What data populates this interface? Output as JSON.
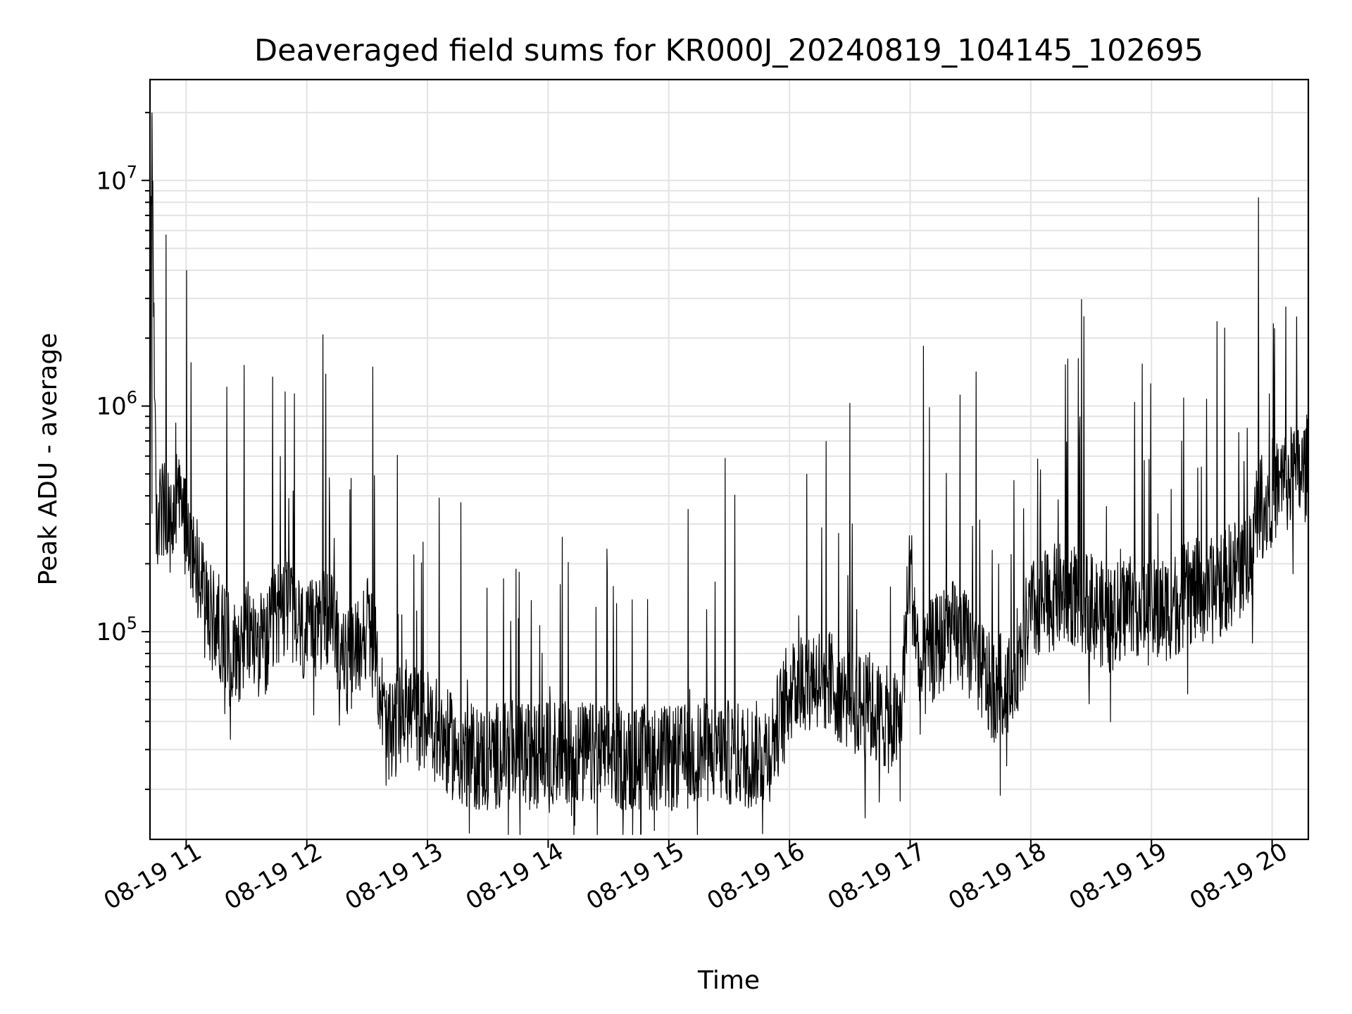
{
  "chart_data": {
    "type": "line",
    "title": "Deaveraged field sums for KR000J_20240819_104145_102695",
    "xlabel": "Time",
    "ylabel": "Peak ADU - average",
    "yscale": "log",
    "grid": true,
    "xlim": [
      "2024-08-19 10:42",
      "2024-08-19 20:18"
    ],
    "ylim": [
      12000,
      28000000
    ],
    "x_ticks": [
      {
        "value": "2024-08-19 11:00",
        "label": "08-19 11"
      },
      {
        "value": "2024-08-19 12:00",
        "label": "08-19 12"
      },
      {
        "value": "2024-08-19 13:00",
        "label": "08-19 13"
      },
      {
        "value": "2024-08-19 14:00",
        "label": "08-19 14"
      },
      {
        "value": "2024-08-19 15:00",
        "label": "08-19 15"
      },
      {
        "value": "2024-08-19 16:00",
        "label": "08-19 16"
      },
      {
        "value": "2024-08-19 17:00",
        "label": "08-19 17"
      },
      {
        "value": "2024-08-19 18:00",
        "label": "08-19 18"
      },
      {
        "value": "2024-08-19 19:00",
        "label": "08-19 19"
      },
      {
        "value": "2024-08-19 20:00",
        "label": "08-19 20"
      }
    ],
    "y_ticks": [
      {
        "value": 100000,
        "base": "10",
        "exp": "5"
      },
      {
        "value": 1000000,
        "base": "10",
        "exp": "6"
      },
      {
        "value": 10000000,
        "base": "10",
        "exp": "7"
      }
    ],
    "series": [
      {
        "color": "#000000",
        "x": [
          "2024-08-19 10:42",
          "2024-08-19 10:43",
          "2024-08-19 10:45",
          "2024-08-19 10:48",
          "2024-08-19 10:52",
          "2024-08-19 10:56",
          "2024-08-19 11:00",
          "2024-08-19 11:05",
          "2024-08-19 11:10",
          "2024-08-19 11:15",
          "2024-08-19 11:20",
          "2024-08-19 11:25",
          "2024-08-19 11:30",
          "2024-08-19 11:35",
          "2024-08-19 11:40",
          "2024-08-19 11:45",
          "2024-08-19 11:50",
          "2024-08-19 11:55",
          "2024-08-19 12:00",
          "2024-08-19 12:05",
          "2024-08-19 12:10",
          "2024-08-19 12:15",
          "2024-08-19 12:20",
          "2024-08-19 12:25",
          "2024-08-19 12:30",
          "2024-08-19 12:35",
          "2024-08-19 12:40",
          "2024-08-19 12:45",
          "2024-08-19 12:50",
          "2024-08-19 12:55",
          "2024-08-19 13:00",
          "2024-08-19 13:10",
          "2024-08-19 13:20",
          "2024-08-19 13:30",
          "2024-08-19 13:40",
          "2024-08-19 13:50",
          "2024-08-19 14:00",
          "2024-08-19 14:10",
          "2024-08-19 14:20",
          "2024-08-19 14:30",
          "2024-08-19 14:40",
          "2024-08-19 14:50",
          "2024-08-19 15:00",
          "2024-08-19 15:10",
          "2024-08-19 15:20",
          "2024-08-19 15:30",
          "2024-08-19 15:40",
          "2024-08-19 15:50",
          "2024-08-19 16:00",
          "2024-08-19 16:10",
          "2024-08-19 16:20",
          "2024-08-19 16:30",
          "2024-08-19 16:40",
          "2024-08-19 16:50",
          "2024-08-19 16:55",
          "2024-08-19 17:00",
          "2024-08-19 17:05",
          "2024-08-19 17:10",
          "2024-08-19 17:20",
          "2024-08-19 17:30",
          "2024-08-19 17:35",
          "2024-08-19 17:40",
          "2024-08-19 17:50",
          "2024-08-19 18:00",
          "2024-08-19 18:10",
          "2024-08-19 18:20",
          "2024-08-19 18:30",
          "2024-08-19 18:40",
          "2024-08-19 18:50",
          "2024-08-19 19:00",
          "2024-08-19 19:10",
          "2024-08-19 19:20",
          "2024-08-19 19:30",
          "2024-08-19 19:40",
          "2024-08-19 19:50",
          "2024-08-19 19:53",
          "2024-08-19 19:56",
          "2024-08-19 20:00",
          "2024-08-19 20:05",
          "2024-08-19 20:10",
          "2024-08-19 20:15",
          "2024-08-19 20:18"
        ],
        "y": [
          250000,
          20000000,
          300000,
          350000,
          280000,
          380000,
          300000,
          220000,
          120000,
          110000,
          95000,
          80000,
          100000,
          90000,
          85000,
          120000,
          140000,
          110000,
          90000,
          110000,
          120000,
          95000,
          70000,
          85000,
          110000,
          70000,
          32000,
          40000,
          45000,
          42000,
          40000,
          32000,
          28000,
          27000,
          30000,
          28000,
          29000,
          30000,
          28000,
          29000,
          27000,
          28000,
          27000,
          28000,
          30000,
          29000,
          28000,
          30000,
          55000,
          65000,
          60000,
          50000,
          45000,
          40000,
          38000,
          200000,
          60000,
          80000,
          100000,
          85000,
          70000,
          55000,
          60000,
          120000,
          140000,
          150000,
          130000,
          110000,
          140000,
          120000,
          130000,
          150000,
          150000,
          180000,
          220000,
          400000,
          350000,
          420000,
          450000,
          480000,
          500000,
          550000
        ]
      }
    ]
  }
}
